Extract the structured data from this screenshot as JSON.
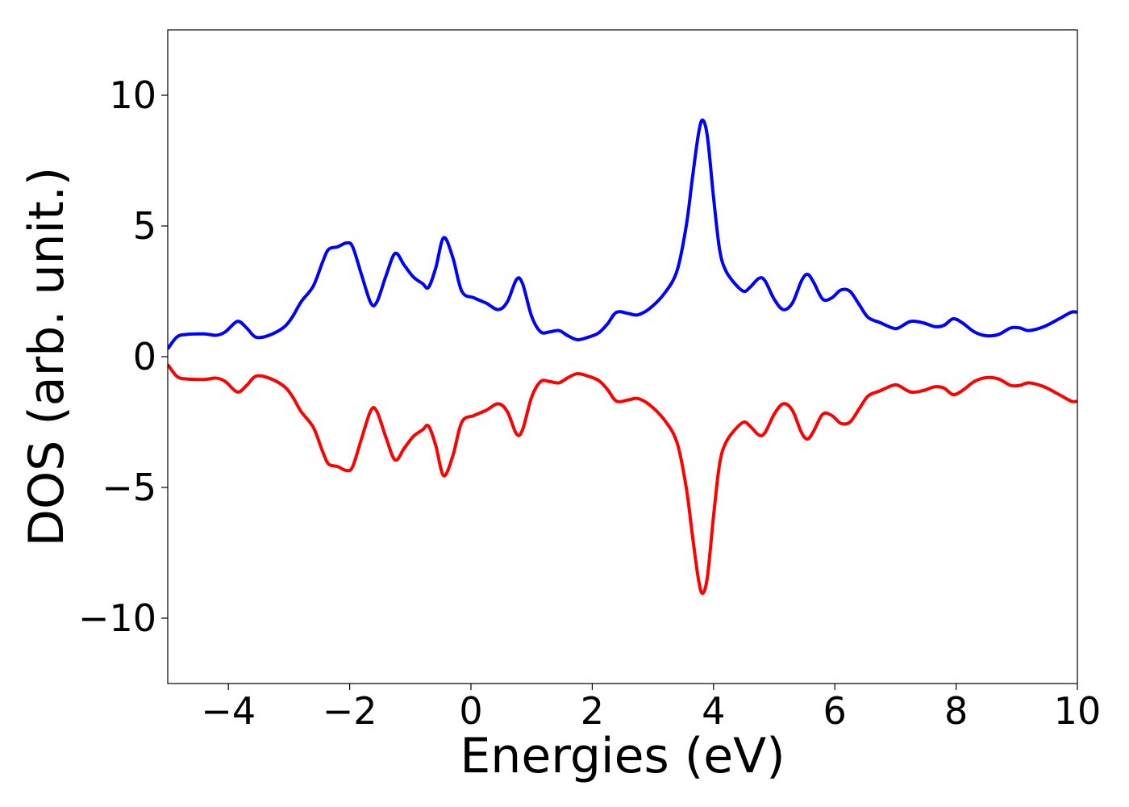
{
  "chart_data": {
    "type": "line",
    "title": "",
    "xlabel": "Energies (eV)",
    "ylabel": "DOS (arb. unit.)",
    "xlim": [
      -5,
      10
    ],
    "ylim": [
      -12.5,
      12.5
    ],
    "xticks": [
      -4,
      -2,
      0,
      2,
      4,
      6,
      8,
      10
    ],
    "xtick_labels": [
      "−4",
      "−2",
      "0",
      "2",
      "4",
      "6",
      "8",
      "10"
    ],
    "yticks": [
      -10,
      -5,
      0,
      5,
      10
    ],
    "ytick_labels": [
      "−10",
      "−5",
      "0",
      "5",
      "10"
    ],
    "grid": false,
    "series": [
      {
        "color": "#0000ff",
        "points": [
          [
            -5.0,
            0.3
          ],
          [
            -4.85,
            0.75
          ],
          [
            -4.7,
            0.85
          ],
          [
            -4.4,
            0.87
          ],
          [
            -4.2,
            0.82
          ],
          [
            -4.05,
            0.95
          ],
          [
            -3.85,
            1.35
          ],
          [
            -3.7,
            1.1
          ],
          [
            -3.55,
            0.75
          ],
          [
            -3.35,
            0.8
          ],
          [
            -3.1,
            1.1
          ],
          [
            -2.95,
            1.5
          ],
          [
            -2.8,
            2.1
          ],
          [
            -2.6,
            2.7
          ],
          [
            -2.45,
            3.6
          ],
          [
            -2.35,
            4.1
          ],
          [
            -2.2,
            4.2
          ],
          [
            -2.05,
            4.35
          ],
          [
            -1.95,
            4.2
          ],
          [
            -1.8,
            3.1
          ],
          [
            -1.65,
            2.05
          ],
          [
            -1.55,
            2.1
          ],
          [
            -1.4,
            3.1
          ],
          [
            -1.25,
            3.95
          ],
          [
            -1.1,
            3.5
          ],
          [
            -0.95,
            3.05
          ],
          [
            -0.8,
            2.8
          ],
          [
            -0.7,
            2.65
          ],
          [
            -0.58,
            3.4
          ],
          [
            -0.45,
            4.55
          ],
          [
            -0.3,
            3.8
          ],
          [
            -0.15,
            2.5
          ],
          [
            0.05,
            2.25
          ],
          [
            0.25,
            2.05
          ],
          [
            0.45,
            1.8
          ],
          [
            0.6,
            2.1
          ],
          [
            0.75,
            2.95
          ],
          [
            0.85,
            2.8
          ],
          [
            1.0,
            1.55
          ],
          [
            1.15,
            0.95
          ],
          [
            1.3,
            0.95
          ],
          [
            1.45,
            1.0
          ],
          [
            1.6,
            0.8
          ],
          [
            1.75,
            0.65
          ],
          [
            1.9,
            0.72
          ],
          [
            2.1,
            0.9
          ],
          [
            2.25,
            1.25
          ],
          [
            2.4,
            1.7
          ],
          [
            2.6,
            1.65
          ],
          [
            2.75,
            1.6
          ],
          [
            2.95,
            1.85
          ],
          [
            3.2,
            2.45
          ],
          [
            3.4,
            3.3
          ],
          [
            3.55,
            5.0
          ],
          [
            3.65,
            6.8
          ],
          [
            3.75,
            8.5
          ],
          [
            3.82,
            9.05
          ],
          [
            3.9,
            8.4
          ],
          [
            4.0,
            6.1
          ],
          [
            4.1,
            4.1
          ],
          [
            4.2,
            3.3
          ],
          [
            4.35,
            2.8
          ],
          [
            4.5,
            2.5
          ],
          [
            4.6,
            2.65
          ],
          [
            4.75,
            3.0
          ],
          [
            4.85,
            2.9
          ],
          [
            5.0,
            2.2
          ],
          [
            5.15,
            1.8
          ],
          [
            5.3,
            2.05
          ],
          [
            5.45,
            2.9
          ],
          [
            5.55,
            3.15
          ],
          [
            5.65,
            2.85
          ],
          [
            5.8,
            2.2
          ],
          [
            5.95,
            2.25
          ],
          [
            6.1,
            2.55
          ],
          [
            6.25,
            2.5
          ],
          [
            6.4,
            2.0
          ],
          [
            6.55,
            1.5
          ],
          [
            6.75,
            1.3
          ],
          [
            6.95,
            1.1
          ],
          [
            7.05,
            1.1
          ],
          [
            7.25,
            1.35
          ],
          [
            7.45,
            1.3
          ],
          [
            7.65,
            1.15
          ],
          [
            7.8,
            1.2
          ],
          [
            7.95,
            1.45
          ],
          [
            8.1,
            1.3
          ],
          [
            8.3,
            0.95
          ],
          [
            8.5,
            0.8
          ],
          [
            8.7,
            0.85
          ],
          [
            8.9,
            1.1
          ],
          [
            9.05,
            1.1
          ],
          [
            9.2,
            1.0
          ],
          [
            9.45,
            1.15
          ],
          [
            9.7,
            1.45
          ],
          [
            9.9,
            1.7
          ],
          [
            10.0,
            1.7
          ]
        ]
      },
      {
        "color": "#ff0000",
        "points": [
          [
            -5.0,
            -0.3
          ],
          [
            -4.85,
            -0.75
          ],
          [
            -4.7,
            -0.85
          ],
          [
            -4.4,
            -0.87
          ],
          [
            -4.2,
            -0.82
          ],
          [
            -4.05,
            -0.95
          ],
          [
            -3.85,
            -1.35
          ],
          [
            -3.7,
            -1.1
          ],
          [
            -3.55,
            -0.75
          ],
          [
            -3.35,
            -0.8
          ],
          [
            -3.1,
            -1.1
          ],
          [
            -2.95,
            -1.5
          ],
          [
            -2.8,
            -2.1
          ],
          [
            -2.6,
            -2.7
          ],
          [
            -2.45,
            -3.6
          ],
          [
            -2.35,
            -4.1
          ],
          [
            -2.2,
            -4.2
          ],
          [
            -2.05,
            -4.35
          ],
          [
            -1.95,
            -4.2
          ],
          [
            -1.8,
            -3.1
          ],
          [
            -1.65,
            -2.05
          ],
          [
            -1.55,
            -2.1
          ],
          [
            -1.4,
            -3.1
          ],
          [
            -1.25,
            -3.95
          ],
          [
            -1.1,
            -3.5
          ],
          [
            -0.95,
            -3.05
          ],
          [
            -0.8,
            -2.8
          ],
          [
            -0.7,
            -2.65
          ],
          [
            -0.58,
            -3.4
          ],
          [
            -0.45,
            -4.55
          ],
          [
            -0.3,
            -3.8
          ],
          [
            -0.15,
            -2.5
          ],
          [
            0.05,
            -2.25
          ],
          [
            0.25,
            -2.05
          ],
          [
            0.45,
            -1.8
          ],
          [
            0.6,
            -2.1
          ],
          [
            0.75,
            -2.95
          ],
          [
            0.85,
            -2.8
          ],
          [
            1.0,
            -1.55
          ],
          [
            1.15,
            -0.95
          ],
          [
            1.3,
            -0.95
          ],
          [
            1.45,
            -1.0
          ],
          [
            1.6,
            -0.8
          ],
          [
            1.75,
            -0.65
          ],
          [
            1.9,
            -0.72
          ],
          [
            2.1,
            -0.9
          ],
          [
            2.25,
            -1.25
          ],
          [
            2.4,
            -1.7
          ],
          [
            2.6,
            -1.65
          ],
          [
            2.75,
            -1.6
          ],
          [
            2.95,
            -1.85
          ],
          [
            3.2,
            -2.45
          ],
          [
            3.4,
            -3.3
          ],
          [
            3.55,
            -5.0
          ],
          [
            3.65,
            -6.8
          ],
          [
            3.75,
            -8.5
          ],
          [
            3.82,
            -9.05
          ],
          [
            3.9,
            -8.4
          ],
          [
            4.0,
            -6.1
          ],
          [
            4.1,
            -4.1
          ],
          [
            4.2,
            -3.3
          ],
          [
            4.35,
            -2.8
          ],
          [
            4.5,
            -2.5
          ],
          [
            4.6,
            -2.65
          ],
          [
            4.75,
            -3.0
          ],
          [
            4.85,
            -2.9
          ],
          [
            5.0,
            -2.2
          ],
          [
            5.15,
            -1.8
          ],
          [
            5.3,
            -2.05
          ],
          [
            5.45,
            -2.9
          ],
          [
            5.55,
            -3.15
          ],
          [
            5.65,
            -2.85
          ],
          [
            5.8,
            -2.2
          ],
          [
            5.95,
            -2.25
          ],
          [
            6.1,
            -2.55
          ],
          [
            6.25,
            -2.5
          ],
          [
            6.4,
            -2.0
          ],
          [
            6.55,
            -1.5
          ],
          [
            6.75,
            -1.3
          ],
          [
            6.95,
            -1.1
          ],
          [
            7.05,
            -1.1
          ],
          [
            7.25,
            -1.35
          ],
          [
            7.45,
            -1.3
          ],
          [
            7.65,
            -1.15
          ],
          [
            7.8,
            -1.2
          ],
          [
            7.95,
            -1.45
          ],
          [
            8.1,
            -1.3
          ],
          [
            8.3,
            -0.95
          ],
          [
            8.5,
            -0.8
          ],
          [
            8.7,
            -0.85
          ],
          [
            8.9,
            -1.1
          ],
          [
            9.05,
            -1.1
          ],
          [
            9.2,
            -1.0
          ],
          [
            9.45,
            -1.15
          ],
          [
            9.7,
            -1.45
          ],
          [
            9.9,
            -1.7
          ],
          [
            10.0,
            -1.7
          ]
        ]
      }
    ]
  }
}
